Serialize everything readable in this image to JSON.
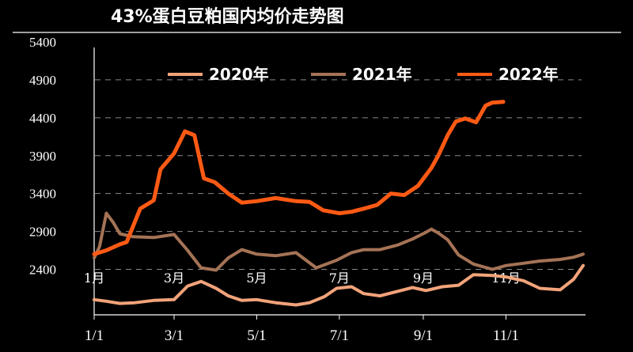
{
  "chart_data": {
    "type": "line",
    "title": "43%蛋白豆粕国内均价走势图",
    "ylim": [
      1800,
      5400
    ],
    "yticks": [
      "5400",
      "4900",
      "4400",
      "3900",
      "3400",
      "2900",
      "2400"
    ],
    "xticks": [
      "1/1",
      "3/1",
      "5/1",
      "7/1",
      "9/1",
      "11/1"
    ],
    "month_labels": [
      "1月",
      "3月",
      "5月",
      "7月",
      "9月",
      "11月"
    ],
    "grid": "dashed",
    "legend_position": "top",
    "colors": {
      "2020年": "#f2a37a",
      "2021年": "#a57356",
      "2022年": "#ff5a14"
    },
    "series": [
      {
        "name": "2020年",
        "x": [
          1,
          10,
          20,
          31,
          45,
          60,
          70,
          80,
          91,
          100,
          110,
          121,
          135,
          150,
          160,
          171,
          180,
          191,
          200,
          212,
          225,
          236,
          246,
          258,
          270,
          281,
          295,
          305,
          318,
          330,
          345,
          355,
          362
        ],
        "y": [
          2000,
          1980,
          1950,
          1960,
          1990,
          2000,
          2180,
          2240,
          2150,
          2050,
          1990,
          2000,
          1960,
          1930,
          1960,
          2040,
          2150,
          2170,
          2080,
          2050,
          2110,
          2160,
          2120,
          2170,
          2190,
          2330,
          2320,
          2300,
          2250,
          2150,
          2130,
          2270,
          2450
        ]
      },
      {
        "name": "2021年",
        "x": [
          1,
          5,
          10,
          15,
          20,
          30,
          45,
          60,
          70,
          80,
          91,
          100,
          110,
          121,
          135,
          150,
          165,
          180,
          191,
          200,
          212,
          225,
          236,
          245,
          250,
          255,
          262,
          270,
          281,
          295,
          305,
          318,
          330,
          345,
          355,
          362
        ],
        "y": [
          2550,
          2700,
          3140,
          3020,
          2870,
          2830,
          2820,
          2860,
          2650,
          2420,
          2390,
          2550,
          2660,
          2600,
          2580,
          2620,
          2420,
          2520,
          2620,
          2660,
          2660,
          2720,
          2800,
          2880,
          2930,
          2880,
          2790,
          2590,
          2470,
          2400,
          2450,
          2480,
          2510,
          2530,
          2560,
          2600
        ]
      },
      {
        "name": "2022年",
        "x": [
          1,
          10,
          20,
          25,
          35,
          45,
          50,
          60,
          68,
          75,
          82,
          90,
          100,
          110,
          121,
          135,
          150,
          160,
          170,
          182,
          191,
          200,
          210,
          220,
          230,
          240,
          250,
          255,
          262,
          268,
          275,
          283,
          290,
          295,
          303
        ],
        "y": [
          2600,
          2650,
          2730,
          2760,
          3200,
          3310,
          3720,
          3930,
          4220,
          4170,
          3600,
          3550,
          3400,
          3280,
          3300,
          3340,
          3300,
          3290,
          3180,
          3140,
          3160,
          3200,
          3250,
          3400,
          3380,
          3500,
          3740,
          3900,
          4170,
          4350,
          4390,
          4340,
          4560,
          4600,
          4610
        ]
      }
    ]
  }
}
